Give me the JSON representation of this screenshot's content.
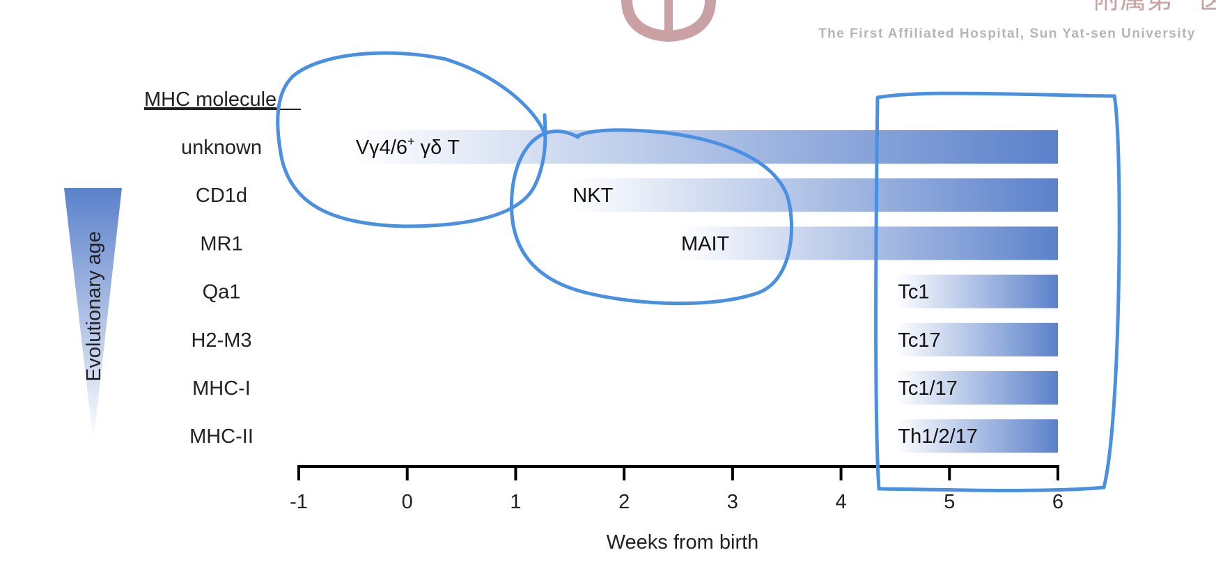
{
  "header": {
    "institution_en": "The First Affiliated Hospital, Sun Yat-sen University",
    "institution_cn_fragment": "附属第一医院"
  },
  "chart_data": {
    "type": "bar",
    "orientation": "horizontal",
    "row_header": "MHC molecule",
    "xlabel": "Weeks from birth",
    "xlim": [
      -1,
      6
    ],
    "xticks": [
      -1,
      0,
      1,
      2,
      3,
      4,
      5,
      6
    ],
    "side_label": "Evolutionary age",
    "categories": [
      "unknown",
      "CD1d",
      "MR1",
      "Qa1",
      "H2-M3",
      "MHC-I",
      "MHC-II"
    ],
    "bars": [
      {
        "category": "unknown",
        "label_main": "Vγ4/6",
        "label_sup": "+",
        "label_tail": " γδ T",
        "start": -0.5,
        "end": 6
      },
      {
        "category": "CD1d",
        "label_main": "NKT",
        "label_sup": "",
        "label_tail": "",
        "start": 1.5,
        "end": 6
      },
      {
        "category": "MR1",
        "label_main": "MAIT",
        "label_sup": "",
        "label_tail": "",
        "start": 2.5,
        "end": 6
      },
      {
        "category": "Qa1",
        "label_main": "Tc1",
        "label_sup": "",
        "label_tail": "",
        "start": 4.5,
        "end": 6
      },
      {
        "category": "H2-M3",
        "label_main": "Tc17",
        "label_sup": "",
        "label_tail": "",
        "start": 4.5,
        "end": 6
      },
      {
        "category": "MHC-I",
        "label_main": "Tc1/17",
        "label_sup": "",
        "label_tail": "",
        "start": 4.5,
        "end": 6
      },
      {
        "category": "MHC-II",
        "label_main": "Th1/2/17",
        "label_sup": "",
        "label_tail": "",
        "start": 4.5,
        "end": 6
      }
    ],
    "colors": {
      "bar_dark": "#5b81cb",
      "bar_light": "#ffffff",
      "annotation": "#4a90e2",
      "axis": "#000000",
      "logo": "#c9a0a4"
    },
    "grid": false
  }
}
